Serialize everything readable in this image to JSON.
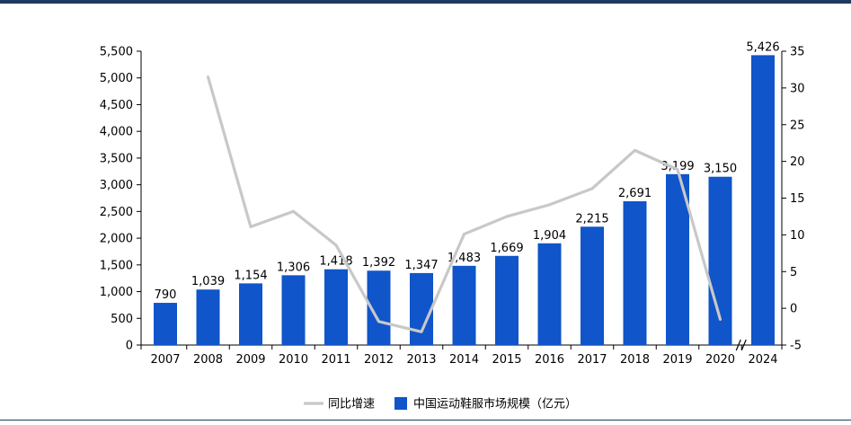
{
  "theme": {
    "bar_color": "#1055C9",
    "line_color": "#C8C8C8",
    "frame_color": "#1F3A5F",
    "axis_color": "#000000"
  },
  "chart_data": {
    "type": "bar",
    "categories": [
      "2007",
      "2008",
      "2009",
      "2010",
      "2011",
      "2012",
      "2013",
      "2014",
      "2015",
      "2016",
      "2017",
      "2018",
      "2019",
      "2020",
      "2024"
    ],
    "axis_break": "//",
    "series": [
      {
        "name": "中国运动鞋服市场规模（亿元）",
        "type": "bar",
        "axis": "left",
        "values": [
          790,
          1039,
          1154,
          1306,
          1418,
          1392,
          1347,
          1483,
          1669,
          1904,
          2215,
          2691,
          3199,
          3150,
          5426
        ],
        "labels": [
          "790",
          "1,039",
          "1,154",
          "1,306",
          "1,418",
          "1,392",
          "1,347",
          "1,483",
          "1,669",
          "1,904",
          "2,215",
          "2,691",
          "3,199",
          "3,150",
          "5,426"
        ]
      },
      {
        "name": "同比增速",
        "type": "line",
        "axis": "right",
        "values": [
          null,
          31.5,
          11.1,
          13.2,
          8.6,
          -1.8,
          -3.2,
          10.1,
          12.5,
          14.1,
          16.3,
          21.5,
          18.9,
          -1.5,
          null
        ]
      }
    ],
    "y_left": {
      "lim": [
        0,
        5500
      ],
      "ticks": [
        0,
        500,
        1000,
        1500,
        2000,
        2500,
        3000,
        3500,
        4000,
        4500,
        5000,
        5500
      ],
      "tick_labels": [
        "0",
        "500",
        "1,000",
        "1,500",
        "2,000",
        "2,500",
        "3,000",
        "3,500",
        "4,000",
        "4,500",
        "5,000",
        "5,500"
      ]
    },
    "y_right": {
      "lim": [
        -5,
        35
      ],
      "ticks": [
        -5,
        0,
        5,
        10,
        15,
        20,
        25,
        30,
        35
      ],
      "tick_labels": [
        "-5",
        "0",
        "5",
        "10",
        "15",
        "20",
        "25",
        "30",
        "35"
      ]
    },
    "legend_position": "bottom",
    "grid": false
  }
}
